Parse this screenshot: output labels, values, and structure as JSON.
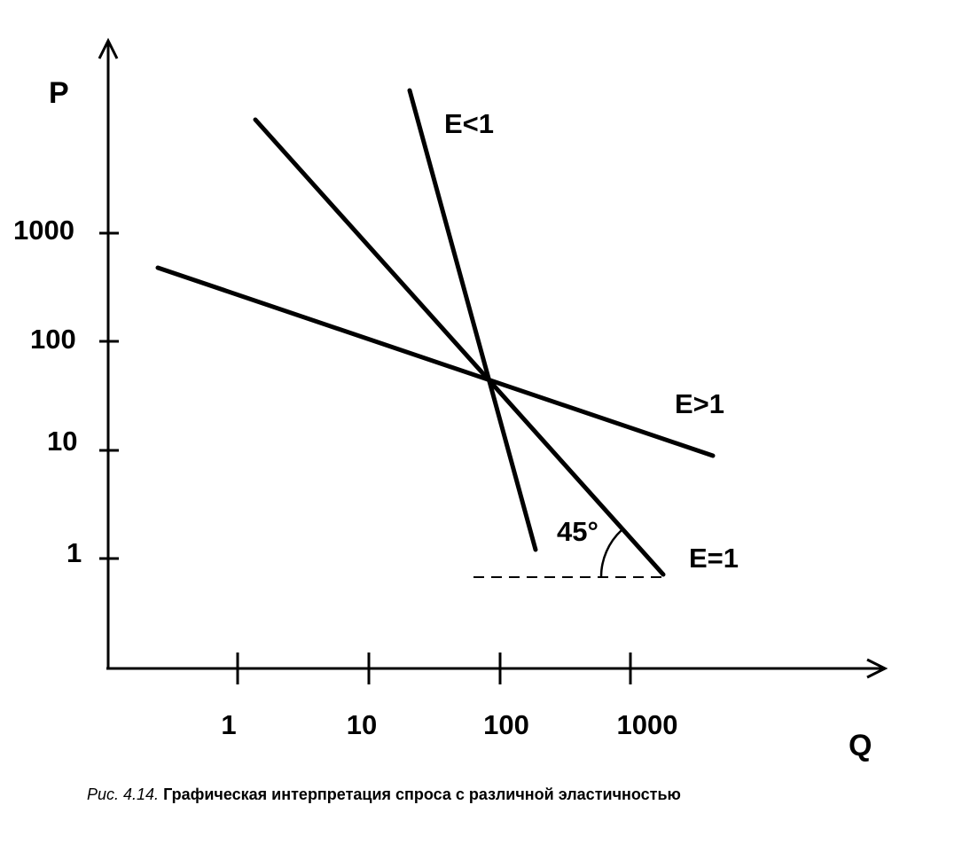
{
  "figure": {
    "axes": {
      "y_label": "P",
      "x_label": "Q",
      "y_ticks": [
        "1",
        "10",
        "100",
        "1000"
      ],
      "x_ticks": [
        "1",
        "10",
        "100",
        "1000"
      ],
      "scale": "logarithmic"
    },
    "curves": [
      {
        "label": "E<1"
      },
      {
        "label": "E>1"
      },
      {
        "label": "E=1"
      }
    ],
    "angle_label": "45°"
  },
  "caption": {
    "number": "Рис. 4.14.",
    "text": "Графическая интерпретация спроса с различной эластичностью"
  },
  "colors": {
    "ink": "#000000",
    "background": "#ffffff"
  }
}
